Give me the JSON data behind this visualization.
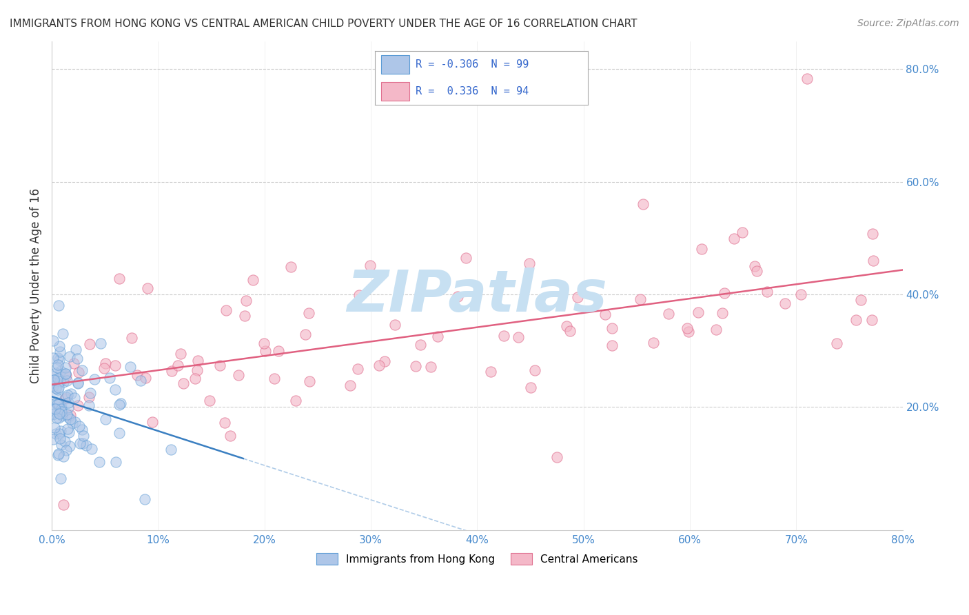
{
  "title": "IMMIGRANTS FROM HONG KONG VS CENTRAL AMERICAN CHILD POVERTY UNDER THE AGE OF 16 CORRELATION CHART",
  "source": "Source: ZipAtlas.com",
  "ylabel": "Child Poverty Under the Age of 16",
  "legend_entries": [
    {
      "label": "Immigrants from Hong Kong",
      "R": "-0.306",
      "N": 99,
      "color": "#aec6e8",
      "edge": "#5b9bd5"
    },
    {
      "label": "Central Americans",
      "R": "0.336",
      "N": 94,
      "color": "#f4b8c8",
      "edge": "#e07090"
    }
  ],
  "xlim": [
    0.0,
    0.8
  ],
  "ylim": [
    -0.02,
    0.85
  ],
  "y_ticks_right": [
    0.2,
    0.4,
    0.6,
    0.8
  ],
  "background_color": "#ffffff",
  "watermark": "ZIPatlas",
  "watermark_color_r": 0.78,
  "watermark_color_g": 0.88,
  "watermark_color_b": 0.95,
  "blue_line_color": "#3a7fc1",
  "blue_dash_color": "#b0cce8",
  "pink_line_color": "#e06080",
  "grid_color": "#cccccc"
}
